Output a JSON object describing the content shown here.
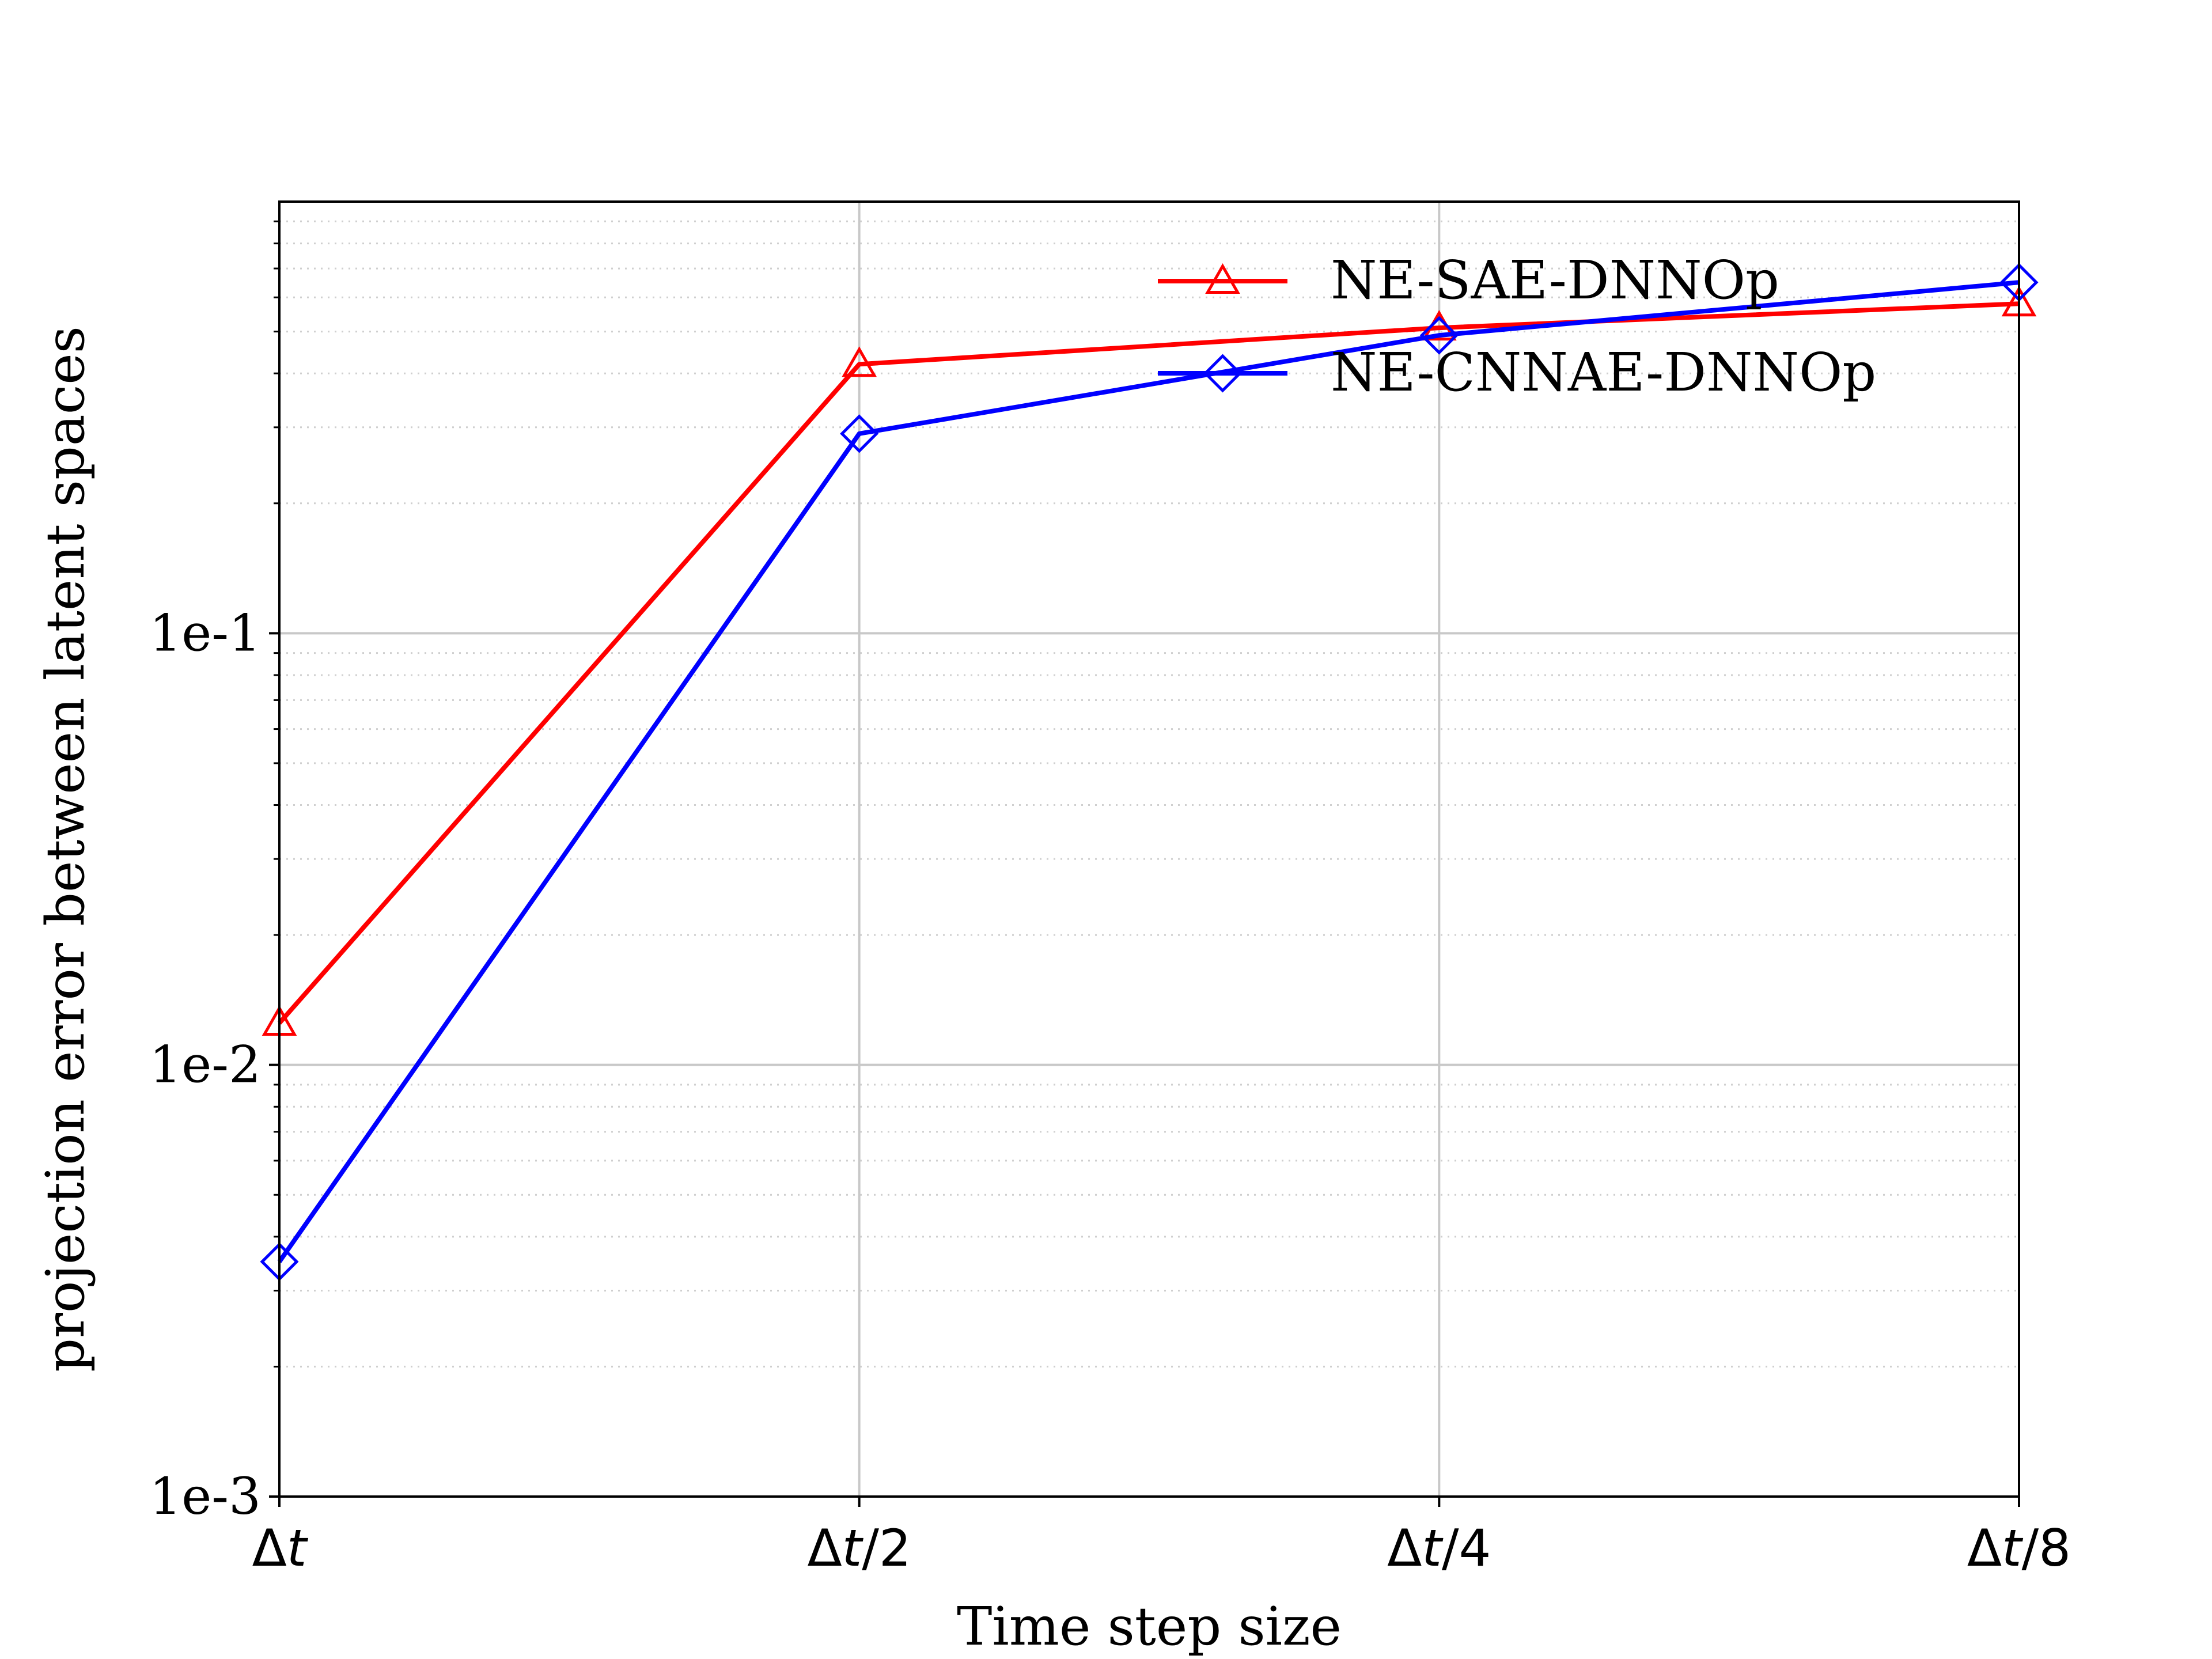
{
  "chart_data": {
    "type": "line",
    "title": "",
    "xlabel": "Time step size",
    "ylabel": "projection error between latent spaces",
    "y_scale": "log",
    "ylim": [
      0.001,
      1.0
    ],
    "grid": true,
    "legend_position": "top-right",
    "categories": [
      {
        "prefix": "Δ",
        "var": "t",
        "suffix": ""
      },
      {
        "prefix": "Δ",
        "var": "t",
        "suffix": "/2"
      },
      {
        "prefix": "Δ",
        "var": "t",
        "suffix": "/4"
      },
      {
        "prefix": "Δ",
        "var": "t",
        "suffix": "/8"
      }
    ],
    "y_ticks": [
      {
        "value": 0.001,
        "label": "1e-3"
      },
      {
        "value": 0.01,
        "label": "1e-2"
      },
      {
        "value": 0.1,
        "label": "1e-1"
      }
    ],
    "series": [
      {
        "name": "NE-SAE-DNNOp",
        "color": "#ff0000",
        "marker": "triangle-up",
        "values": [
          0.0125,
          0.42,
          0.51,
          0.58
        ]
      },
      {
        "name": "NE-CNNAE-DNNOp",
        "color": "#0000ff",
        "marker": "diamond",
        "values": [
          0.0035,
          0.29,
          0.49,
          0.65
        ]
      }
    ]
  }
}
